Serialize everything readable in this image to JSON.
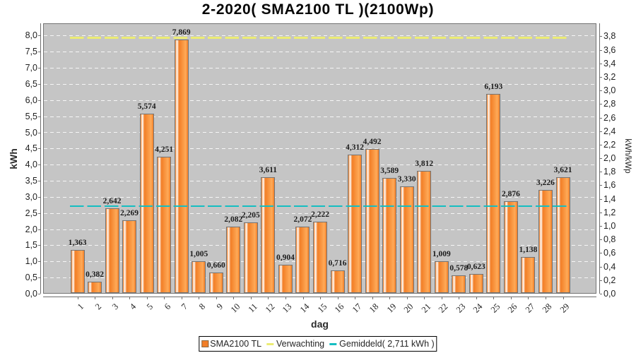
{
  "window": {
    "title": "2-2020( SMA2100 TL )(2100Wp)"
  },
  "chart_data": {
    "type": "bar",
    "title": "2-2020( SMA2100 TL )(2100Wp)",
    "xlabel": "dag",
    "ylabel": "kWh",
    "ylabel_right": "kWh/kWp",
    "categories": [
      1,
      2,
      3,
      4,
      5,
      6,
      7,
      8,
      9,
      10,
      11,
      12,
      13,
      14,
      15,
      16,
      17,
      18,
      19,
      20,
      21,
      22,
      23,
      24,
      25,
      26,
      27,
      28,
      29
    ],
    "series": [
      {
        "name": "SMA2100 TL",
        "values": [
          1.363,
          0.382,
          2.642,
          2.269,
          5.574,
          4.251,
          7.869,
          1.005,
          0.66,
          2.082,
          2.205,
          3.611,
          0.904,
          2.072,
          2.222,
          0.716,
          4.312,
          4.492,
          3.589,
          3.33,
          3.812,
          1.009,
          0.578,
          0.623,
          6.193,
          2.876,
          1.138,
          3.226,
          3.621
        ]
      }
    ],
    "value_label_decimals": 3,
    "decimal_separator": ",",
    "left_axis": {
      "min": 0.0,
      "max": 8.0,
      "step": 0.5,
      "decimals": 1
    },
    "right_axis": {
      "min": 0.0,
      "max": 3.8,
      "step": 0.2,
      "decimals": 1,
      "kwh_per_unit": 2.1
    },
    "ylim": [
      0.0,
      8.38
    ],
    "grid": true,
    "markers": [
      {
        "name": "Verwachting",
        "value_kwh": 7.925,
        "color": "#ecec74",
        "thickness": 3
      },
      {
        "name": "Gemiddeld",
        "value_kwh": 2.711,
        "color": "#15bec2",
        "thickness": 2
      }
    ],
    "legend_position": "bottom",
    "colors": {
      "bar_base": "#f27e26",
      "bar_bright": "#ffaa58",
      "bar_highlight": "#ffffff",
      "bar_outline": "#747474",
      "plot_background": "#c5c5c5",
      "gridline": "#f4f4f4"
    }
  },
  "legend": {
    "series_label": "SMA2100 TL",
    "expected_label": "Verwachting",
    "average_label": "Gemiddeld( 2,711 kWh )",
    "expected_color": "#ecec74",
    "average_color": "#15bec2"
  }
}
